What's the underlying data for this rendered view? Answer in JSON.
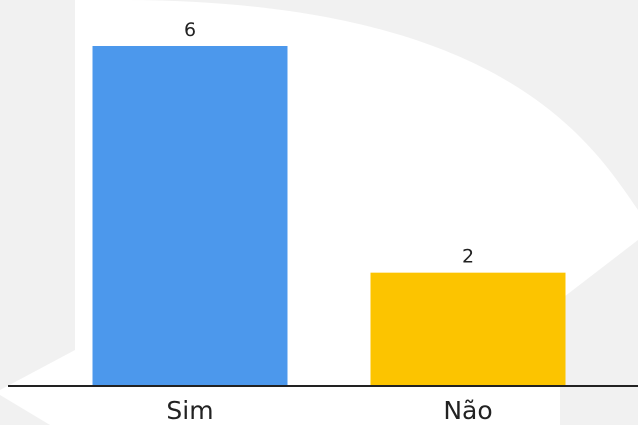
{
  "chart_data": {
    "type": "bar",
    "categories": [
      "Sim",
      "Não"
    ],
    "values": [
      6,
      2
    ],
    "colors": [
      "#4c98ec",
      "#fcc400"
    ],
    "data_labels": [
      "6",
      "2"
    ],
    "title": "",
    "xlabel": "",
    "ylabel": "",
    "ylim": [
      0,
      6
    ],
    "grid": false,
    "legend": "none",
    "background": "#f1f1f1"
  }
}
